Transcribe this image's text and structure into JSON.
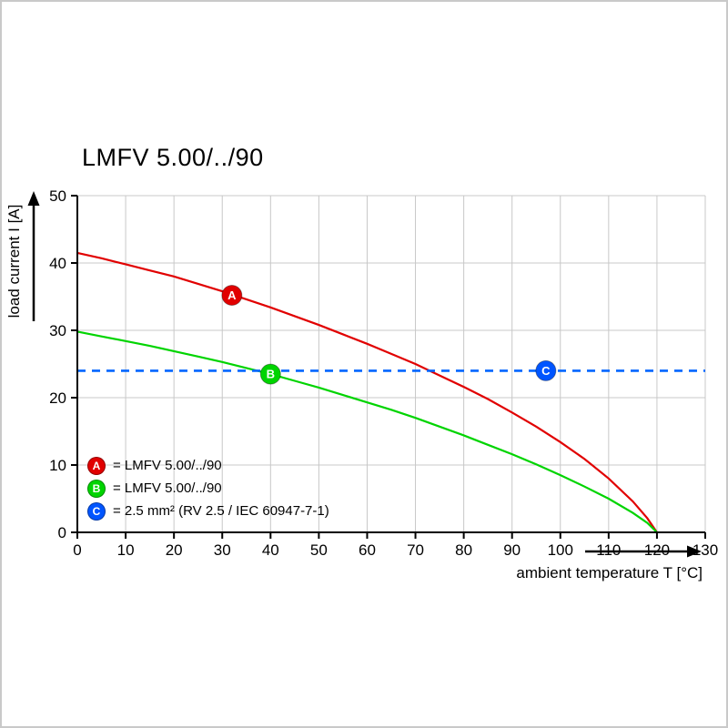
{
  "title": "LMFV 5.00/../90",
  "y_axis_label": "load current I [A]",
  "x_axis_label": "ambient temperature T [°C]",
  "legend": [
    {
      "badge": "A",
      "color": "#e10000",
      "text": "= LMFV 5.00/../90"
    },
    {
      "badge": "B",
      "color": "#00d400",
      "text": "= LMFV 5.00/../90"
    },
    {
      "badge": "C",
      "color": "#0055ff",
      "text": "= 2.5 mm² (RV 2.5 / IEC 60947-7-1)"
    }
  ],
  "chart_data": {
    "type": "line",
    "title": "LMFV 5.00/../90",
    "xlabel": "ambient temperature T [°C]",
    "ylabel": "load current I [A]",
    "xlim": [
      0,
      130
    ],
    "ylim": [
      0,
      50
    ],
    "x_ticks": [
      0,
      10,
      20,
      30,
      40,
      50,
      60,
      70,
      80,
      90,
      100,
      110,
      120,
      130
    ],
    "y_ticks": [
      0,
      10,
      20,
      30,
      40,
      50
    ],
    "grid": true,
    "grid_color": "#c8c8c8",
    "legend_position": "lower-left-inside",
    "series": [
      {
        "name": "A = LMFV 5.00/../90",
        "color": "#e10000",
        "style": "solid",
        "points": [
          [
            0,
            41.5
          ],
          [
            5,
            40.7
          ],
          [
            10,
            39.8
          ],
          [
            15,
            38.9
          ],
          [
            20,
            38.0
          ],
          [
            25,
            36.9
          ],
          [
            30,
            35.8
          ],
          [
            35,
            34.6
          ],
          [
            40,
            33.4
          ],
          [
            45,
            32.1
          ],
          [
            50,
            30.8
          ],
          [
            55,
            29.4
          ],
          [
            60,
            28.0
          ],
          [
            65,
            26.5
          ],
          [
            70,
            25.0
          ],
          [
            75,
            23.3
          ],
          [
            80,
            21.6
          ],
          [
            85,
            19.8
          ],
          [
            90,
            17.8
          ],
          [
            95,
            15.7
          ],
          [
            100,
            13.4
          ],
          [
            105,
            10.9
          ],
          [
            110,
            8.0
          ],
          [
            115,
            4.6
          ],
          [
            118,
            2.1
          ],
          [
            120,
            0
          ]
        ]
      },
      {
        "name": "B = LMFV 5.00/../90",
        "color": "#00d400",
        "style": "solid",
        "points": [
          [
            0,
            29.8
          ],
          [
            5,
            29.1
          ],
          [
            10,
            28.4
          ],
          [
            15,
            27.7
          ],
          [
            20,
            26.9
          ],
          [
            25,
            26.1
          ],
          [
            30,
            25.3
          ],
          [
            35,
            24.4
          ],
          [
            40,
            23.5
          ],
          [
            45,
            22.5
          ],
          [
            50,
            21.5
          ],
          [
            55,
            20.4
          ],
          [
            60,
            19.3
          ],
          [
            65,
            18.2
          ],
          [
            70,
            17.0
          ],
          [
            75,
            15.7
          ],
          [
            80,
            14.4
          ],
          [
            85,
            13.0
          ],
          [
            90,
            11.6
          ],
          [
            95,
            10.1
          ],
          [
            100,
            8.5
          ],
          [
            105,
            6.8
          ],
          [
            110,
            5.0
          ],
          [
            115,
            2.9
          ],
          [
            118,
            1.4
          ],
          [
            120,
            0
          ]
        ]
      },
      {
        "name": "C = 2.5 mm² (RV 2.5 / IEC 60947-7-1)",
        "color": "#0066ff",
        "style": "dashed",
        "points": [
          [
            0,
            24
          ],
          [
            130,
            24
          ]
        ]
      }
    ],
    "markers": [
      {
        "label": "A",
        "x": 32,
        "y": 35.2,
        "color": "#e10000"
      },
      {
        "label": "B",
        "x": 40,
        "y": 23.5,
        "color": "#00d400"
      },
      {
        "label": "C",
        "x": 97,
        "y": 24,
        "color": "#0055ff"
      }
    ]
  }
}
